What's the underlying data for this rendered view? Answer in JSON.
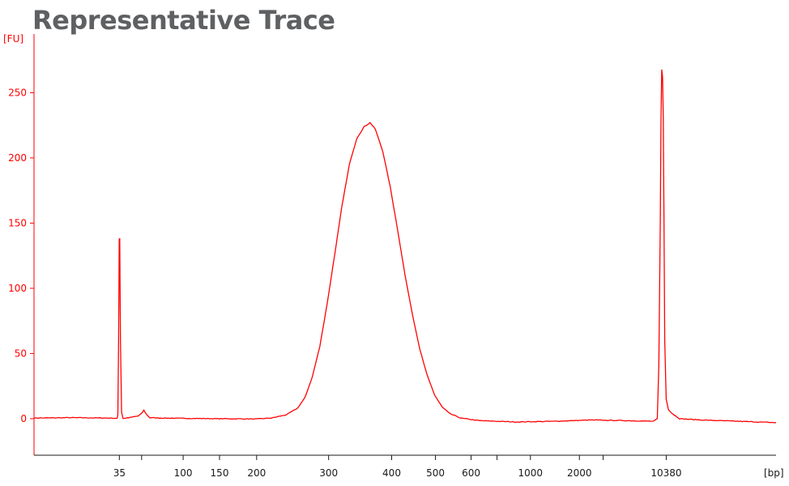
{
  "title": "Representative Trace",
  "chart_data": {
    "type": "line",
    "ylabel": "[FU]",
    "xlabel": "[bp]",
    "ylim": [
      -28,
      295
    ],
    "y_ticks": [
      0,
      50,
      100,
      150,
      200,
      250
    ],
    "x_tick_labels": [
      {
        "label": "35",
        "t": 0.115
      },
      {
        "label": "100",
        "t": 0.201
      },
      {
        "label": "150",
        "t": 0.25
      },
      {
        "label": "200",
        "t": 0.3
      },
      {
        "label": "300",
        "t": 0.397
      },
      {
        "label": "400",
        "t": 0.482
      },
      {
        "label": "500",
        "t": 0.541
      },
      {
        "label": "600",
        "t": 0.589
      },
      {
        "label": "1000",
        "t": 0.669
      },
      {
        "label": "2000",
        "t": 0.735
      },
      {
        "label": "10380",
        "t": 0.852
      }
    ],
    "x_unlabeled_ticks_t": [
      0.145,
      0.624,
      0.767
    ],
    "series": [
      {
        "color": "#ff0000",
        "points": [
          [
            0.0,
            0.5
          ],
          [
            0.05,
            0.8
          ],
          [
            0.1,
            0.5
          ],
          [
            0.112,
            0.3
          ],
          [
            0.113,
            3
          ],
          [
            0.114,
            60
          ],
          [
            0.1148,
            138
          ],
          [
            0.1155,
            138
          ],
          [
            0.1165,
            60
          ],
          [
            0.118,
            5
          ],
          [
            0.12,
            0.2
          ],
          [
            0.13,
            1
          ],
          [
            0.14,
            2
          ],
          [
            0.145,
            4
          ],
          [
            0.148,
            6.5
          ],
          [
            0.152,
            3
          ],
          [
            0.156,
            0.8
          ],
          [
            0.17,
            0.5
          ],
          [
            0.2,
            0.3
          ],
          [
            0.25,
            0
          ],
          [
            0.3,
            -0.2
          ],
          [
            0.32,
            0.5
          ],
          [
            0.34,
            3
          ],
          [
            0.355,
            8
          ],
          [
            0.365,
            16
          ],
          [
            0.375,
            32
          ],
          [
            0.385,
            55
          ],
          [
            0.395,
            88
          ],
          [
            0.405,
            125
          ],
          [
            0.415,
            163
          ],
          [
            0.425,
            195
          ],
          [
            0.435,
            215
          ],
          [
            0.445,
            224
          ],
          [
            0.453,
            227
          ],
          [
            0.46,
            222
          ],
          [
            0.47,
            205
          ],
          [
            0.48,
            178
          ],
          [
            0.49,
            145
          ],
          [
            0.5,
            110
          ],
          [
            0.51,
            80
          ],
          [
            0.52,
            53
          ],
          [
            0.53,
            33
          ],
          [
            0.54,
            18
          ],
          [
            0.55,
            9
          ],
          [
            0.56,
            4
          ],
          [
            0.575,
            0.5
          ],
          [
            0.6,
            -1.5
          ],
          [
            0.65,
            -2.5
          ],
          [
            0.7,
            -2
          ],
          [
            0.75,
            -1
          ],
          [
            0.8,
            -1.5
          ],
          [
            0.835,
            -2
          ],
          [
            0.84,
            0
          ],
          [
            0.842,
            40
          ],
          [
            0.844,
            150
          ],
          [
            0.845,
            230
          ],
          [
            0.846,
            268
          ],
          [
            0.847,
            262
          ],
          [
            0.848,
            230
          ],
          [
            0.849,
            150
          ],
          [
            0.85,
            60
          ],
          [
            0.852,
            15
          ],
          [
            0.855,
            7
          ],
          [
            0.86,
            4
          ],
          [
            0.865,
            2
          ],
          [
            0.87,
            0
          ],
          [
            0.9,
            -1
          ],
          [
            0.95,
            -2
          ],
          [
            1.0,
            -3
          ]
        ]
      }
    ]
  }
}
